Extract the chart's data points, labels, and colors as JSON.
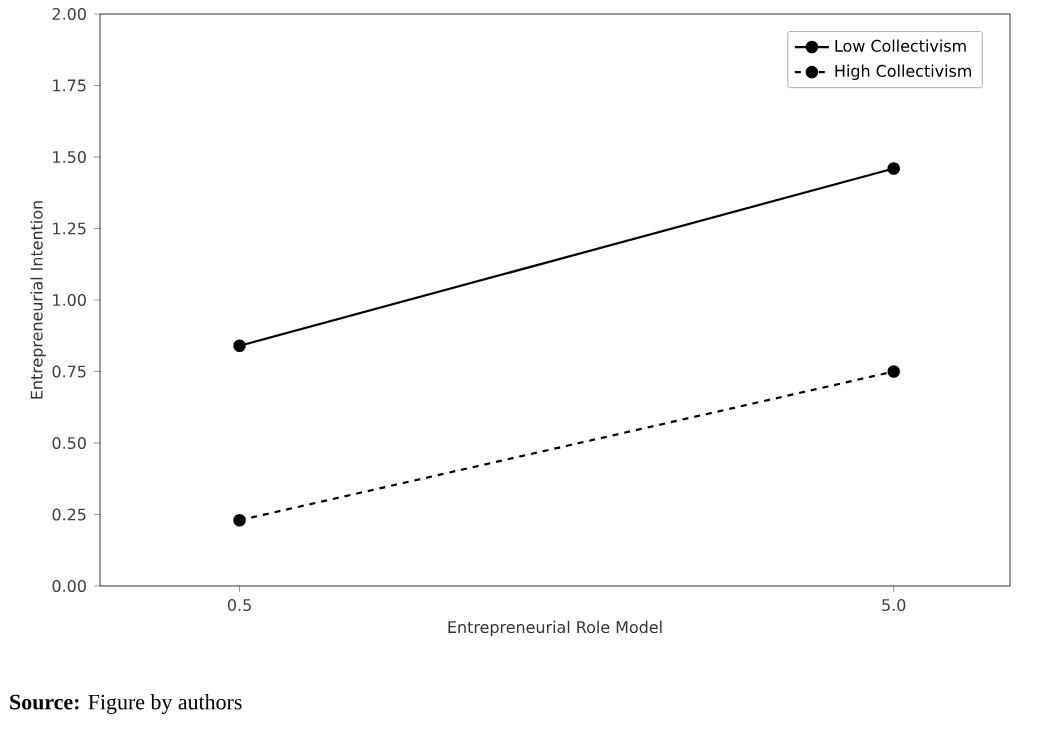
{
  "chart_data": {
    "type": "line",
    "xlabel": "Entrepreneurial Role Model",
    "ylabel": "Entrepreneurial Intention",
    "x": [
      0.5,
      5.0
    ],
    "xlim": [
      -0.46,
      5.8
    ],
    "xticks": [
      0.5,
      {
        "value": 5.0,
        "label": "5.0"
      }
    ],
    "series": [
      {
        "name": "Low Collectivism",
        "color": "#000000",
        "line_style": "solid",
        "values": [
          0.84,
          1.46
        ]
      },
      {
        "name": "High Collectivism",
        "color": "#000000",
        "line_style": "dashed",
        "values": [
          0.23,
          0.75
        ]
      }
    ],
    "ylim": [
      0,
      2
    ],
    "yticks": [
      {
        "value": 0,
        "label": "0.00"
      },
      {
        "value": 0.25,
        "label": "0.25"
      },
      {
        "value": 0.5,
        "label": "0.50"
      },
      {
        "value": 0.75,
        "label": "0.75"
      },
      {
        "value": 1,
        "label": "1.00"
      },
      {
        "value": 1.25,
        "label": "1.25"
      },
      {
        "value": 1.5,
        "label": "1.50"
      },
      {
        "value": 1.75,
        "label": "1.75"
      },
      {
        "value": 2,
        "label": "2.00"
      }
    ],
    "marker": "circle",
    "legend": "top right",
    "annotations": [
      "**Source:** Figure by authors"
    ]
  }
}
